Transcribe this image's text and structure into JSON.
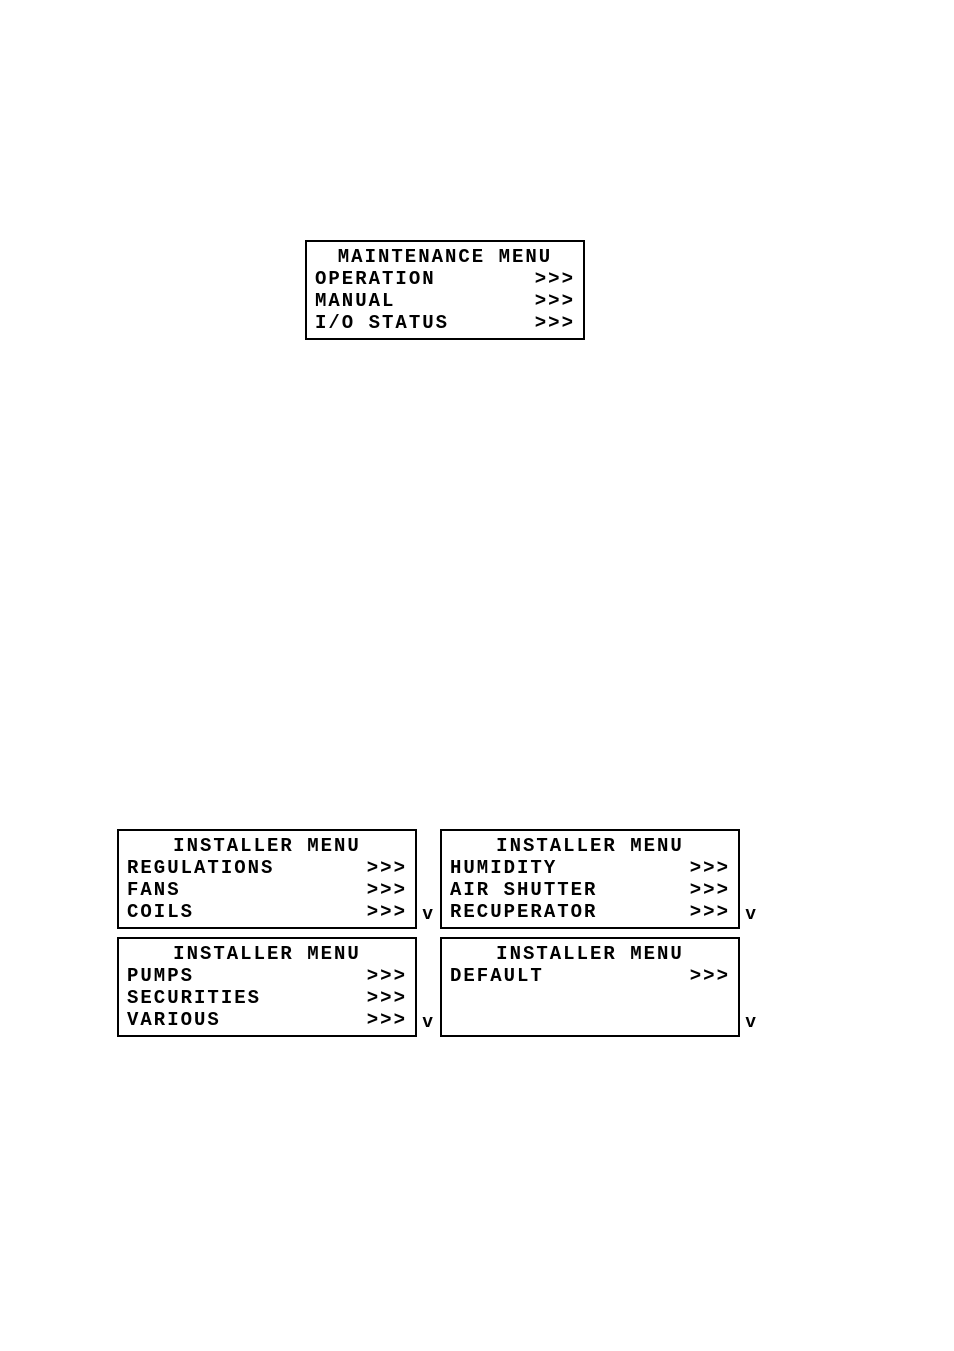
{
  "screens": {
    "maintenance": {
      "title": "MAINTENANCE MENU",
      "items": [
        {
          "label": "OPERATION",
          "arrow": ">>>"
        },
        {
          "label": "MANUAL",
          "arrow": ">>>"
        },
        {
          "label": "I/O STATUS",
          "arrow": ">>>"
        }
      ],
      "scroll_indicator": false
    },
    "installer1": {
      "title": "INSTALLER MENU",
      "items": [
        {
          "label": "REGULATIONS",
          "arrow": ">>>"
        },
        {
          "label": "FANS",
          "arrow": ">>>"
        },
        {
          "label": "COILS",
          "arrow": ">>>"
        }
      ],
      "scroll_indicator": true,
      "scroll_char": "v"
    },
    "installer2": {
      "title": "INSTALLER MENU",
      "items": [
        {
          "label": "HUMIDITY",
          "arrow": ">>>"
        },
        {
          "label": "AIR SHUTTER",
          "arrow": ">>>"
        },
        {
          "label": "RECUPERATOR",
          "arrow": ">>>"
        }
      ],
      "scroll_indicator": true,
      "scroll_char": "v"
    },
    "installer3": {
      "title": "INSTALLER MENU",
      "items": [
        {
          "label": "PUMPS",
          "arrow": ">>>"
        },
        {
          "label": "SECURITIES",
          "arrow": ">>>"
        },
        {
          "label": "VARIOUS",
          "arrow": ">>>"
        }
      ],
      "scroll_indicator": true,
      "scroll_char": "v"
    },
    "installer4": {
      "title": "INSTALLER MENU",
      "items": [
        {
          "label": "DEFAULT",
          "arrow": ">>>"
        },
        {
          "label": "",
          "arrow": ""
        },
        {
          "label": "",
          "arrow": ""
        }
      ],
      "scroll_indicator": true,
      "scroll_char": "v"
    }
  },
  "colors": {
    "background": "#ffffff",
    "border": "#000000",
    "text": "#000000"
  }
}
